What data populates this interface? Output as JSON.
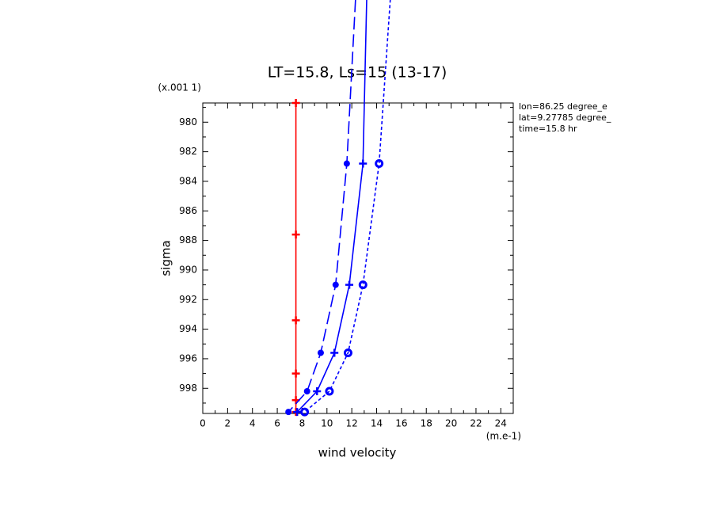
{
  "chart_data": {
    "type": "line",
    "title": "LT=15.8, Ls=15 (13-17)",
    "x_label": "wind velocity",
    "y_label": "sigma",
    "x_unit": "(m.e-1)",
    "y_unit": "(x.001 1)",
    "annotations": [
      "lon=86.25 degree_e",
      "lat=9.27785 degree_",
      "time=15.8 hr"
    ],
    "xlim": [
      0,
      25
    ],
    "ylim": [
      978.7,
      999.7
    ],
    "y_inverted": true,
    "xticks": [
      0,
      2,
      4,
      6,
      8,
      10,
      12,
      14,
      16,
      18,
      20,
      22,
      24
    ],
    "yticks": [
      980,
      982,
      984,
      986,
      988,
      990,
      992,
      994,
      996,
      998
    ],
    "series": [
      {
        "color": "#ff0000",
        "dash": "none",
        "x": [
          7.5,
          7.5,
          7.5,
          7.5,
          7.5,
          7.5
        ],
        "y": [
          978.7,
          987.6,
          993.4,
          997.0,
          998.8,
          999.6
        ]
      },
      {
        "color": "#0000ff",
        "dash": "16,6",
        "x": [
          12.3,
          11.6,
          10.7,
          9.5,
          8.4,
          6.9
        ],
        "y": [
          971.7,
          982.8,
          991.0,
          995.6,
          998.2,
          999.6
        ]
      },
      {
        "color": "#0000ff",
        "dash": "none",
        "x": [
          13.2,
          12.9,
          11.8,
          10.6,
          9.2,
          7.6
        ],
        "y": [
          971.7,
          982.8,
          991.0,
          995.6,
          998.2,
          999.6
        ]
      },
      {
        "color": "#0000ff",
        "dash": "4,3",
        "x": [
          15.1,
          14.2,
          12.9,
          11.7,
          10.2,
          8.2
        ],
        "y": [
          971.7,
          982.8,
          991.0,
          995.6,
          998.2,
          999.6
        ]
      }
    ]
  }
}
